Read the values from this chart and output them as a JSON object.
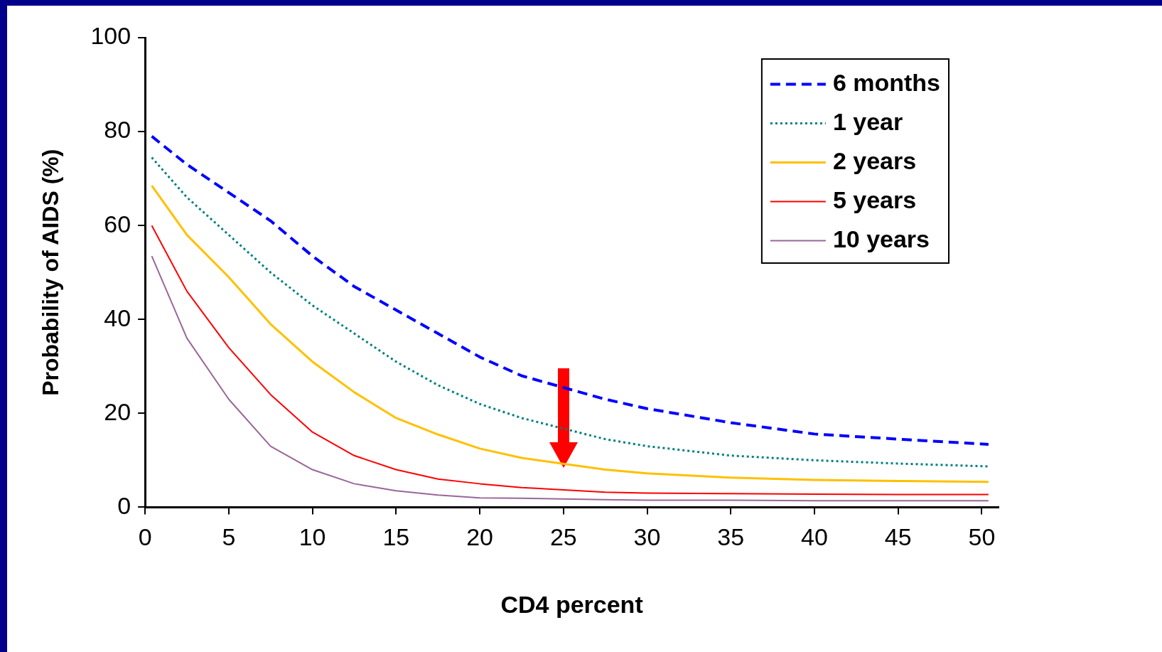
{
  "chart_data": {
    "type": "line",
    "xlabel": "CD4 percent",
    "ylabel": "Probability of AIDS (%)",
    "xlim": [
      0,
      51
    ],
    "ylim": [
      0,
      100
    ],
    "xticks": [
      0,
      5,
      10,
      15,
      20,
      25,
      30,
      35,
      40,
      45,
      50
    ],
    "yticks": [
      0,
      20,
      40,
      60,
      80,
      100
    ],
    "grid": false,
    "legend": "top right",
    "marker": "none",
    "x": [
      0.4,
      2.5,
      5,
      7.5,
      10,
      12.5,
      15,
      17.5,
      20,
      22.5,
      27.5,
      30,
      35,
      40,
      45,
      50.4
    ],
    "series": [
      {
        "name": "6 months",
        "color": "#0000ff",
        "line_style": "dashed",
        "values": [
          79,
          73,
          67,
          61,
          53.5,
          47,
          42,
          37,
          32,
          28,
          23,
          21,
          18,
          15.6,
          14.5,
          13.4
        ]
      },
      {
        "name": "1 year",
        "color": "#008080",
        "line_style": "dotted",
        "values": [
          74.5,
          66,
          58,
          50,
          43,
          37,
          31,
          26,
          22,
          19,
          14.5,
          13,
          11,
          10,
          9.3,
          8.7
        ]
      },
      {
        "name": "2 years",
        "color": "#ffc000",
        "line_style": "solid",
        "values": [
          68.5,
          58,
          49,
          39,
          31,
          24.5,
          19,
          15.5,
          12.5,
          10.5,
          8,
          7.2,
          6.3,
          5.8,
          5.6,
          5.4
        ]
      },
      {
        "name": "5 years",
        "color": "#ff0000",
        "line_style": "solid",
        "values": [
          60,
          46,
          34,
          24,
          16,
          11,
          8,
          6,
          5,
          4.2,
          3.2,
          3,
          2.9,
          2.8,
          2.7,
          2.7
        ]
      },
      {
        "name": "10 years",
        "color": "#996699",
        "line_style": "solid",
        "values": [
          53.5,
          36,
          23,
          13,
          8,
          5,
          3.5,
          2.6,
          2,
          1.9,
          1.6,
          1.5,
          1.5,
          1.4,
          1.4,
          1.4
        ]
      }
    ]
  }
}
